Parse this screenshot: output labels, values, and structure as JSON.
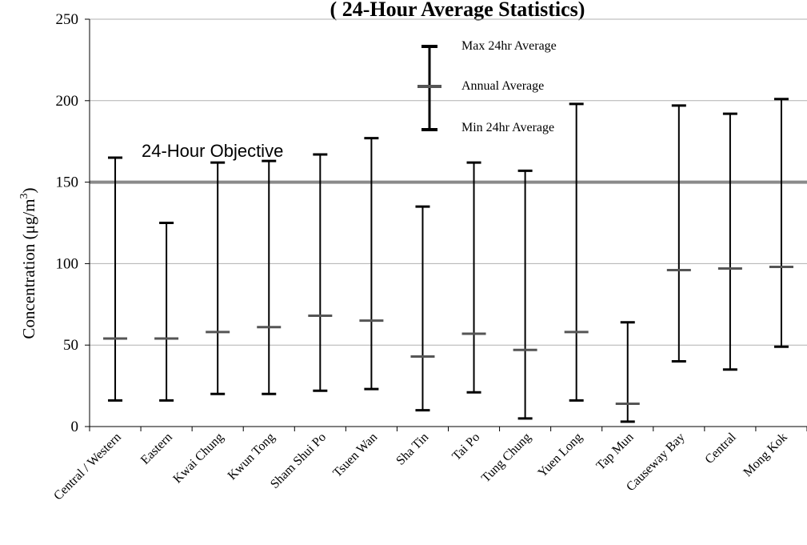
{
  "chart_data": {
    "type": "error_bar",
    "title": "( 24-Hour Average Statistics)",
    "ylabel_main": "Concentration (μg/m",
    "ylabel_sup": "3",
    "ylabel_close": ")",
    "ylim": [
      0,
      250
    ],
    "yticks": [
      0,
      50,
      100,
      150,
      200,
      250
    ],
    "grid": true,
    "legend_position": "top-center",
    "objective": {
      "label": "24-Hour Objective",
      "value": 150,
      "color": "#8a8a8a"
    },
    "legend": {
      "max": "Max 24hr Average",
      "annual": "Annual Average",
      "min": "Min 24hr Average"
    },
    "colors": {
      "range": "#000000",
      "annual": "#555555",
      "grid": "#b0b0b0"
    },
    "categories": [
      "Central / Western",
      "Eastern",
      "Kwai Chung",
      "Kwun Tong",
      "Sham Shui Po",
      "Tsuen Wan",
      "Sha Tin",
      "Tai Po",
      "Tung Chung",
      "Yuen Long",
      "Tap Mun",
      "Causeway Bay",
      "Central",
      "Mong Kok"
    ],
    "series": [
      {
        "name": "Max 24hr Average",
        "values": [
          165,
          125,
          162,
          163,
          167,
          177,
          135,
          162,
          157,
          198,
          64,
          197,
          192,
          201
        ]
      },
      {
        "name": "Annual Average",
        "values": [
          54,
          54,
          58,
          61,
          68,
          65,
          43,
          57,
          47,
          58,
          14,
          96,
          97,
          98
        ]
      },
      {
        "name": "Min 24hr Average",
        "values": [
          16,
          16,
          20,
          20,
          22,
          23,
          10,
          21,
          5,
          16,
          3,
          40,
          35,
          49
        ]
      }
    ]
  }
}
